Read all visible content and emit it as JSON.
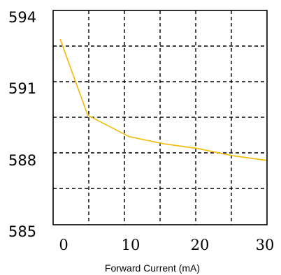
{
  "chart_data": {
    "type": "line",
    "title": "",
    "xlabel": "Forward Current (mA)",
    "ylabel": "",
    "xlim": [
      0,
      30
    ],
    "ylim": [
      585,
      594
    ],
    "x_ticks": [
      "0",
      "10",
      "20",
      "30"
    ],
    "y_ticks": [
      "594",
      "591",
      "588",
      "585"
    ],
    "grid": true,
    "grid_style": "dashed",
    "series": [
      {
        "color": "#f5b800",
        "x": [
          0,
          4,
          10,
          15,
          20,
          25,
          30
        ],
        "y": [
          592.8,
          589.6,
          588.7,
          588.4,
          588.2,
          587.9,
          587.7
        ]
      }
    ]
  }
}
